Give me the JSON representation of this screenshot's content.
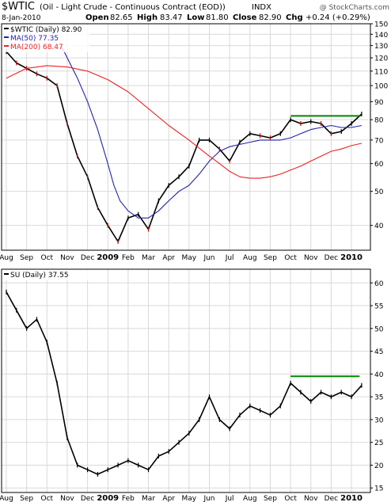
{
  "header": {
    "symbol": "$WTIC",
    "description": "(Oil - Light Crude - Continuous Contract (EOD))",
    "exchange": "INDX",
    "watermark": "@ StockCharts.com",
    "date": "8-Jan-2010",
    "open_label": "Open",
    "open": "82.65",
    "high_label": "High",
    "high": "83.47",
    "low_label": "Low",
    "low": "81.80",
    "close_label": "Close",
    "close": "82.90",
    "chg_label": "Chg",
    "chg": "+0.24 (+0.29%)"
  },
  "colors": {
    "price": "#000000",
    "down_bar": "#cc0000",
    "ma50": "#2222aa",
    "ma200": "#ee2222",
    "resistance": "#008800",
    "grid": "#d9d9d9",
    "frame": "#000000"
  },
  "chart_data": [
    {
      "type": "line",
      "title": "$WTIC (Daily) 82.90",
      "ylim": [
        34,
        150
      ],
      "log_scale": true,
      "grid": true,
      "legend_position": "top-left",
      "y_ticks": [
        40,
        50,
        60,
        70,
        80,
        90,
        100,
        110,
        120,
        130,
        140,
        150
      ],
      "x_ticks": [
        "Aug",
        "Sep",
        "Oct",
        "Nov",
        "Dec",
        "2009",
        "Feb",
        "Mar",
        "Apr",
        "May",
        "Jun",
        "Jul",
        "Aug",
        "Sep",
        "Oct",
        "Nov",
        "Dec",
        "2010"
      ],
      "x_bold_ticks": [
        "2009",
        "2010"
      ],
      "legend": [
        {
          "label": "$WTIC (Daily) 82.90",
          "color": "#000000"
        },
        {
          "label": "MA(50) 77.35",
          "color": "#2222aa"
        },
        {
          "label": "MA(200) 68.47",
          "color": "#ee2222"
        }
      ],
      "series": [
        {
          "name": "$WTIC (Daily)",
          "x": [
            0,
            0.5,
            1,
            1.5,
            2,
            2.5,
            3,
            3.5,
            4,
            4.5,
            5,
            5.5,
            6,
            6.5,
            7,
            7.5,
            8,
            8.5,
            9,
            9.5,
            10,
            10.5,
            11,
            11.5,
            12,
            12.5,
            13,
            13.5,
            14,
            14.5,
            15,
            15.5,
            16,
            16.5,
            17,
            17.5
          ],
          "values": [
            125,
            116,
            112,
            108,
            105,
            100,
            78,
            63,
            55,
            45,
            40,
            36,
            42,
            43,
            39,
            47,
            52,
            55,
            59,
            70,
            70,
            66,
            61,
            69,
            73,
            72,
            71,
            73,
            80,
            78,
            79,
            78,
            73,
            74,
            78,
            83
          ]
        },
        {
          "name": "MA(50)",
          "x": [
            2.7,
            3,
            3.5,
            4,
            4.5,
            5,
            5.3,
            5.6,
            6,
            6.5,
            7,
            7.5,
            8,
            8.5,
            9,
            9.5,
            10,
            10.5,
            11,
            11.5,
            12,
            12.5,
            13,
            13.5,
            14,
            14.5,
            15,
            15.5,
            16,
            16.5,
            17,
            17.5
          ],
          "values": [
            130,
            120,
            105,
            90,
            75,
            60,
            52,
            47,
            44,
            42,
            42,
            44,
            47,
            50,
            52,
            56,
            61,
            65,
            67,
            68,
            69,
            70,
            70,
            70,
            71,
            73,
            75,
            76,
            77,
            76,
            76,
            77
          ]
        },
        {
          "name": "MA(200)",
          "x": [
            0,
            1,
            2,
            3,
            4,
            5,
            6,
            7,
            8,
            9,
            10,
            10.5,
            11,
            11.5,
            12,
            12.5,
            13,
            13.5,
            14,
            14.5,
            15,
            15.5,
            16,
            16.5,
            17,
            17.5
          ],
          "values": [
            105,
            112,
            114,
            113,
            110,
            104,
            96,
            86,
            77,
            70,
            63,
            60,
            57,
            55,
            54.5,
            54.5,
            55,
            56,
            57.5,
            59,
            61,
            63,
            65,
            66,
            67.5,
            68.5
          ]
        }
      ],
      "annotations": [
        {
          "type": "horizontal_line",
          "y": 82,
          "x_start": 14,
          "x_end": 17.4,
          "color": "#008800"
        }
      ]
    },
    {
      "type": "line",
      "title": "SU (Daily) 37.55",
      "ylim": [
        14,
        63
      ],
      "grid": true,
      "legend_position": "top-left",
      "y_ticks": [
        15,
        20,
        25,
        30,
        35,
        40,
        45,
        50,
        55,
        60
      ],
      "x_ticks": [
        "Aug",
        "Sep",
        "Oct",
        "Nov",
        "Dec",
        "2009",
        "Feb",
        "Mar",
        "Apr",
        "May",
        "Jun",
        "Jul",
        "Aug",
        "Sep",
        "Oct",
        "Nov",
        "Dec",
        "2010"
      ],
      "x_bold_ticks": [
        "2009",
        "2010"
      ],
      "legend": [
        {
          "label": "SU (Daily) 37.55",
          "color": "#000000"
        }
      ],
      "series": [
        {
          "name": "SU (Daily)",
          "x": [
            0,
            0.5,
            1,
            1.5,
            2,
            2.5,
            3,
            3.5,
            4,
            4.5,
            5,
            5.5,
            6,
            6.5,
            7,
            7.5,
            8,
            8.5,
            9,
            9.5,
            10,
            10.5,
            11,
            11.5,
            12,
            12.5,
            13,
            13.5,
            14,
            14.5,
            15,
            15.5,
            16,
            16.5,
            17,
            17.5
          ],
          "values": [
            58,
            54,
            50,
            52,
            47,
            38,
            26,
            20,
            19,
            18,
            19,
            20,
            21,
            20,
            19,
            22,
            23,
            25,
            27,
            30,
            35,
            30,
            28,
            31,
            33,
            32,
            31,
            33,
            38,
            36,
            34,
            36,
            35,
            36,
            35,
            37.5
          ]
        }
      ],
      "annotations": [
        {
          "type": "horizontal_line",
          "y": 39.5,
          "x_start": 14,
          "x_end": 17.4,
          "color": "#008800"
        }
      ]
    }
  ]
}
